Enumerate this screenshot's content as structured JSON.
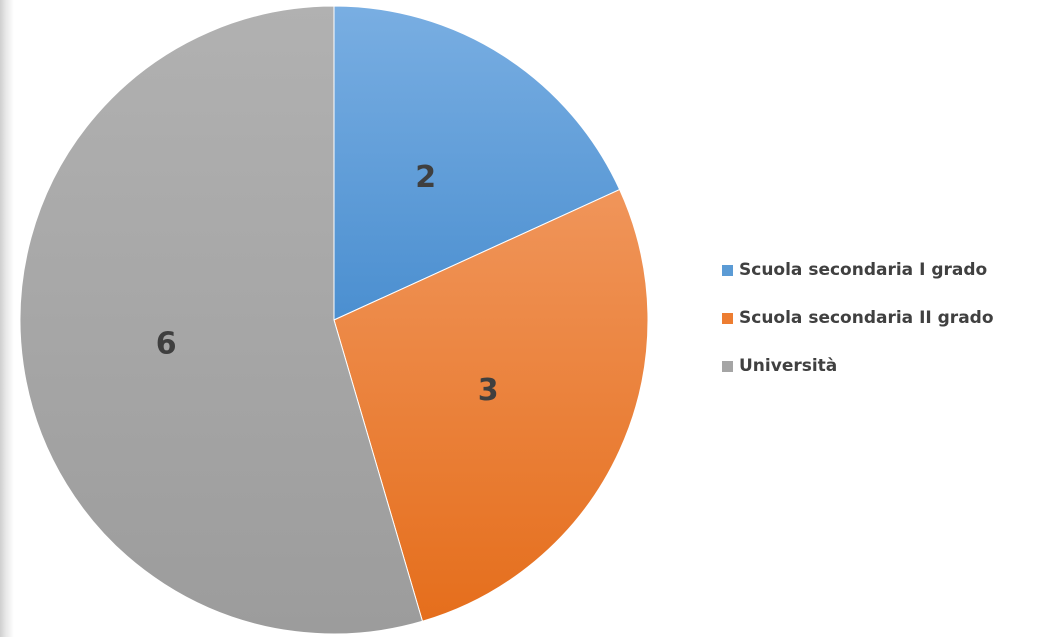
{
  "chart_data": {
    "type": "pie",
    "categories": [
      "Scuola secondaria I grado",
      "Scuola secondaria II grado",
      "Università"
    ],
    "values": [
      2,
      3,
      6
    ],
    "colors": [
      "#5b9bd5",
      "#ed7d31",
      "#a5a5a5"
    ],
    "data_labels": [
      "2",
      "3",
      "6"
    ],
    "start_angle_deg": 0,
    "direction": "clockwise",
    "legend_position": "right",
    "title": ""
  }
}
